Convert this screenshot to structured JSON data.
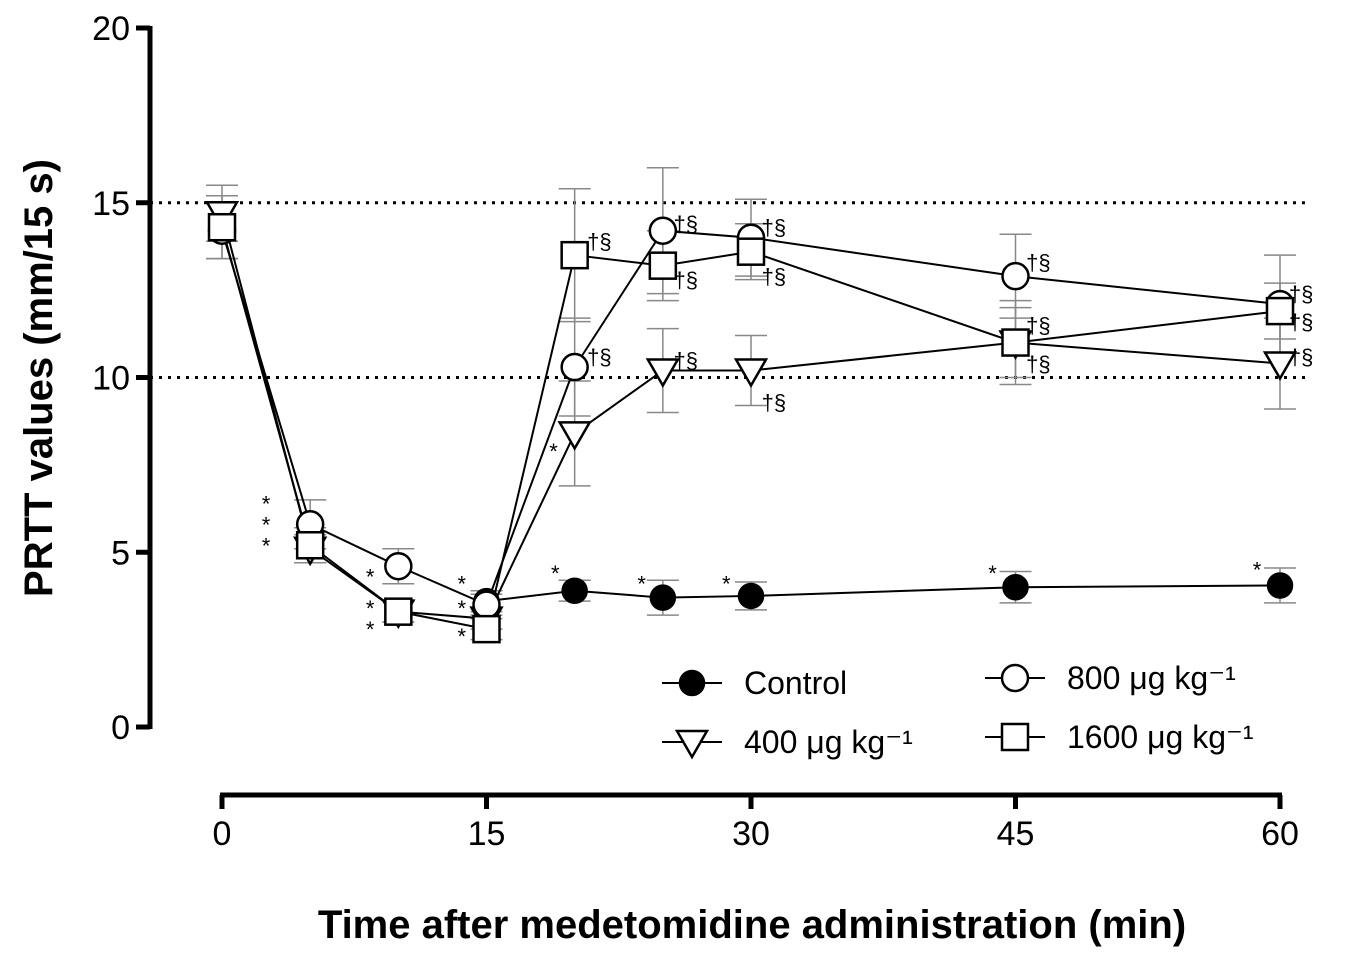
{
  "chart_data": {
    "type": "line",
    "title": "",
    "xlabel": "Time after medetomidine administration (min)",
    "ylabel": "PRTT values (mm/15 s)",
    "x_ticks": [
      0,
      15,
      30,
      45,
      60
    ],
    "y_ticks": [
      0,
      5,
      10,
      15,
      20
    ],
    "xlim": [
      0,
      60
    ],
    "ylim": [
      0,
      20
    ],
    "reference_lines": [
      10,
      15
    ],
    "legend_position": "bottom-right",
    "series": [
      {
        "name": "Control",
        "marker": "filled-circle",
        "x": [
          15,
          20,
          25,
          30,
          45,
          60
        ],
        "y": [
          3.6,
          3.9,
          3.7,
          3.75,
          4.0,
          4.05
        ],
        "err": [
          0.3,
          0.3,
          0.5,
          0.4,
          0.45,
          0.5
        ]
      },
      {
        "name": "400 μg kg⁻¹",
        "marker": "open-triangle-down",
        "x": [
          0,
          5,
          10,
          15,
          20,
          25,
          30,
          45,
          60
        ],
        "y": [
          14.7,
          5.1,
          3.3,
          3.1,
          8.4,
          10.2,
          10.2,
          11.0,
          10.4
        ],
        "err": [
          0.8,
          0.4,
          0.3,
          0.3,
          1.5,
          1.2,
          1.0,
          1.2,
          1.3
        ]
      },
      {
        "name": "800 μg kg⁻¹",
        "marker": "open-circle",
        "x": [
          0,
          5,
          10,
          15,
          20,
          25,
          30,
          45,
          60
        ],
        "y": [
          14.2,
          5.8,
          4.6,
          3.5,
          10.3,
          14.2,
          14.0,
          12.9,
          12.1
        ],
        "err": [
          0.8,
          0.7,
          0.5,
          0.3,
          1.4,
          1.8,
          1.1,
          1.2,
          1.4
        ]
      },
      {
        "name": "1600 μg kg⁻¹",
        "marker": "open-square",
        "x": [
          0,
          5,
          10,
          15,
          20,
          25,
          30,
          45,
          60
        ],
        "y": [
          14.3,
          5.2,
          3.3,
          2.8,
          13.5,
          13.2,
          13.6,
          11.0,
          11.9
        ],
        "err": [
          0.9,
          0.5,
          0.3,
          0.3,
          1.9,
          1.0,
          0.8,
          1.0,
          0.8
        ]
      }
    ],
    "annotations": [
      {
        "text": "*",
        "x": 2.5,
        "y": 6.4
      },
      {
        "text": "*",
        "x": 2.5,
        "y": 5.8
      },
      {
        "text": "*",
        "x": 2.5,
        "y": 5.2
      },
      {
        "text": "*",
        "x": 8.4,
        "y": 4.3
      },
      {
        "text": "*",
        "x": 8.4,
        "y": 3.4
      },
      {
        "text": "*",
        "x": 8.4,
        "y": 2.8
      },
      {
        "text": "*",
        "x": 13.6,
        "y": 4.1
      },
      {
        "text": "*",
        "x": 13.6,
        "y": 3.4
      },
      {
        "text": "*",
        "x": 13.6,
        "y": 2.6
      },
      {
        "text": "*",
        "x": 18.9,
        "y": 4.4
      },
      {
        "text": "*",
        "x": 23.8,
        "y": 4.1
      },
      {
        "text": "*",
        "x": 28.6,
        "y": 4.1
      },
      {
        "text": "*",
        "x": 43.7,
        "y": 4.4
      },
      {
        "text": "*",
        "x": 58.7,
        "y": 4.5
      },
      {
        "text": "*",
        "x": 18.8,
        "y": 7.9
      },
      {
        "text": "†§",
        "x": 21.4,
        "y": 13.9
      },
      {
        "text": "†§",
        "x": 21.4,
        "y": 10.6
      },
      {
        "text": "†§",
        "x": 26.3,
        "y": 14.4
      },
      {
        "text": "†§",
        "x": 26.3,
        "y": 12.8
      },
      {
        "text": "†§",
        "x": 26.3,
        "y": 10.5
      },
      {
        "text": "†§",
        "x": 31.3,
        "y": 14.3
      },
      {
        "text": "†§",
        "x": 31.3,
        "y": 12.9
      },
      {
        "text": "†§",
        "x": 31.3,
        "y": 9.3
      },
      {
        "text": "†§",
        "x": 46.3,
        "y": 13.3
      },
      {
        "text": "†§",
        "x": 46.3,
        "y": 11.5
      },
      {
        "text": "†§",
        "x": 46.3,
        "y": 10.4
      },
      {
        "text": "†§",
        "x": 61.2,
        "y": 12.4
      },
      {
        "text": "†§",
        "x": 61.2,
        "y": 11.6
      },
      {
        "text": "†§",
        "x": 61.2,
        "y": 10.6
      }
    ]
  }
}
